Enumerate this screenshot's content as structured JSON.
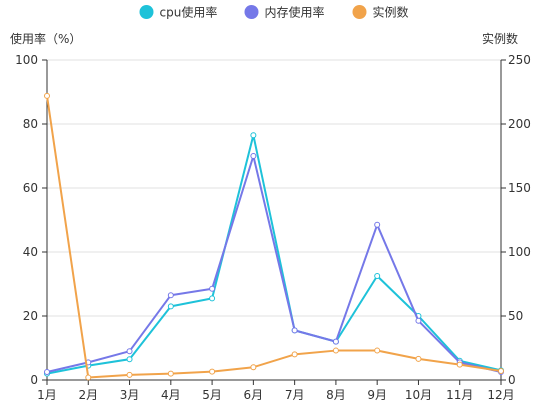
{
  "chart_data": {
    "type": "line",
    "categories": [
      "1月",
      "2月",
      "3月",
      "4月",
      "5月",
      "6月",
      "7月",
      "8月",
      "9月",
      "10月",
      "11月",
      "12月"
    ],
    "series": [
      {
        "name": "cpu使用率",
        "axis": "left",
        "color": "#1ec2d9",
        "values": [
          2.0,
          4.5,
          6.5,
          23,
          25.5,
          76.5,
          15.5,
          12,
          32.5,
          20,
          6,
          3
        ]
      },
      {
        "name": "内存使用率",
        "axis": "left",
        "color": "#7578e8",
        "values": [
          2.5,
          5.5,
          9,
          26.5,
          28.5,
          70,
          15.5,
          12,
          48.5,
          18.5,
          5.5,
          2.5
        ]
      },
      {
        "name": "实例数",
        "axis": "right",
        "color": "#f1a34a",
        "values": [
          222,
          2,
          4,
          5,
          6.5,
          10,
          20,
          23,
          23,
          16.5,
          12,
          7
        ]
      }
    ],
    "y_left": {
      "label": "使用率（%）",
      "min": 0,
      "max": 100,
      "ticks": [
        "0",
        "20",
        "40",
        "60",
        "80",
        "100"
      ]
    },
    "y_right": {
      "label": "实例数",
      "min": 0,
      "max": 250,
      "ticks": [
        "0",
        "50",
        "100",
        "150",
        "200",
        "250"
      ]
    },
    "grid": true,
    "legend_position": "top-center"
  }
}
